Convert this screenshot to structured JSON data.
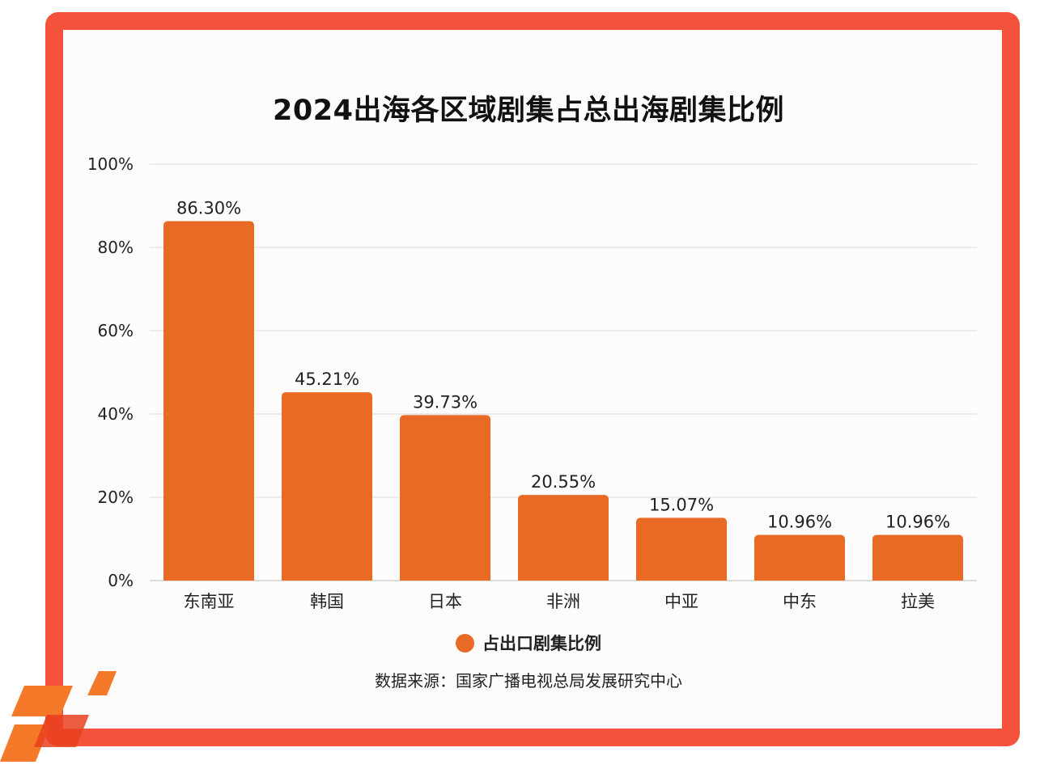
{
  "chart_data": {
    "type": "bar",
    "title": "2024出海各区域剧集占总出海剧集比例",
    "categories": [
      "东南亚",
      "韩国",
      "日本",
      "非洲",
      "中亚",
      "中东",
      "拉美"
    ],
    "series": [
      {
        "name": "占出口剧集比例",
        "values": [
          86.3,
          45.21,
          39.73,
          20.55,
          15.07,
          10.96,
          10.96
        ],
        "labels": [
          "86.30%",
          "45.21%",
          "39.73%",
          "20.55%",
          "15.07%",
          "10.96%",
          "10.96%"
        ]
      }
    ],
    "ylim": [
      0,
      100
    ],
    "yticks": [
      "0%",
      "20%",
      "40%",
      "60%",
      "80%",
      "100%"
    ],
    "ytick_values": [
      0,
      20,
      40,
      60,
      80,
      100
    ],
    "grid": true,
    "legend_position": "bottom-center",
    "source": "数据来源：国家广播电视总局发展研究中心"
  },
  "colors": {
    "bar": "#e86a24",
    "frame": "#f4523b",
    "background": "#fdfcfa",
    "grid": "#dddddd",
    "logo_orange": "#f47a2a",
    "logo_red": "#e8401f"
  },
  "logo": {
    "icon": "brand-logo-icon"
  }
}
